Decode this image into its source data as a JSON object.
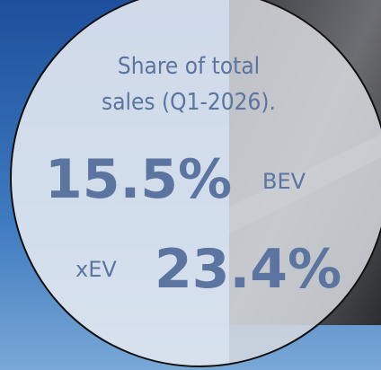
{
  "caption": {
    "line1": "Share of total",
    "line2": "sales (Q1-2026)."
  },
  "stats": [
    {
      "value": "15.5%",
      "label": "BEV"
    },
    {
      "value": "23.4%",
      "label": "xEV"
    }
  ]
}
